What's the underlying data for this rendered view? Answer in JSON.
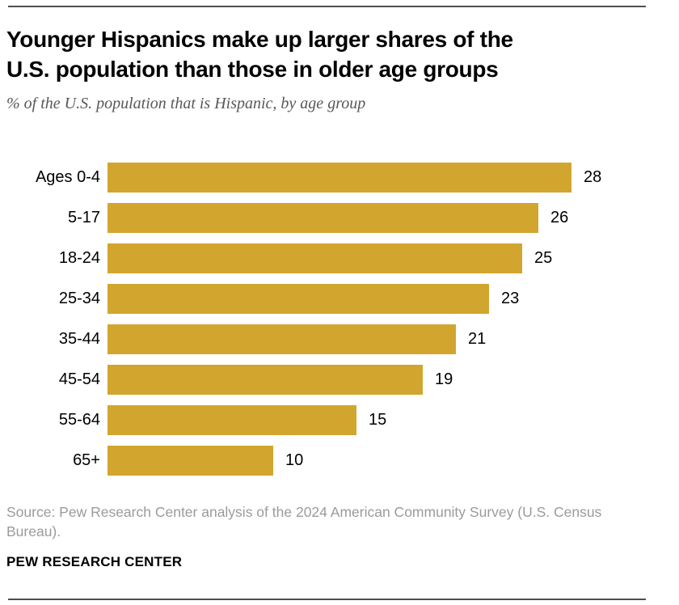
{
  "header": {
    "title_line1": "Younger Hispanics make up larger shares of the",
    "title_line2": "U.S. population than those in older age groups",
    "subtitle": "% of the U.S. population that is Hispanic, by age group"
  },
  "chart_data": {
    "type": "bar",
    "orientation": "horizontal",
    "title": "Younger Hispanics make up larger shares of the U.S. population than those in older age groups",
    "subtitle": "% of the U.S. population that is Hispanic, by age group",
    "categories": [
      "Ages 0-4",
      "5-17",
      "18-24",
      "25-34",
      "35-44",
      "45-54",
      "55-64",
      "65+"
    ],
    "values": [
      28,
      26,
      25,
      23,
      21,
      19,
      15,
      10
    ],
    "xlim": [
      0,
      28
    ],
    "grid": false,
    "legend": false,
    "value_labels": true,
    "bar_color": "#D2A52F"
  },
  "footer": {
    "source": "Source: Pew Research Center analysis of the 2024 American Community Survey (U.S. Census Bureau).",
    "brand": "PEW RESEARCH CENTER"
  }
}
